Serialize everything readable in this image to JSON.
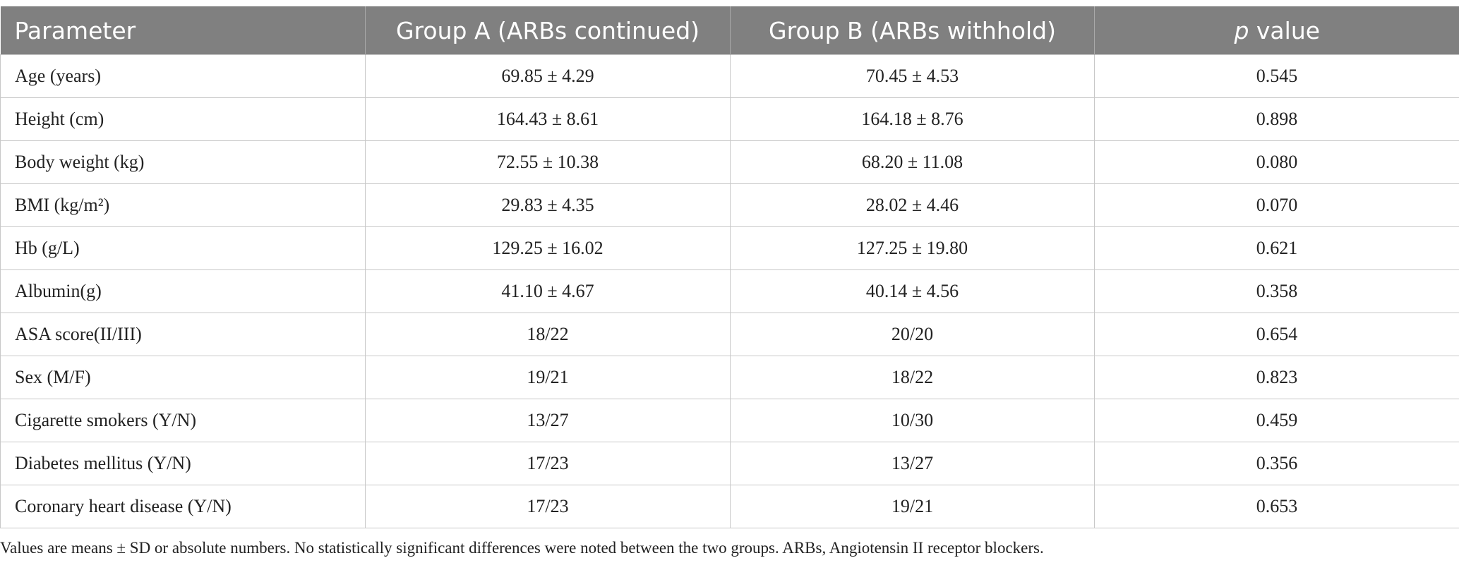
{
  "table": {
    "header": [
      "Parameter",
      "Group A (ARBs continued)",
      "Group B (ARBs withhold)",
      {
        "italic": "p",
        "rest": "value"
      }
    ],
    "rows": [
      [
        "Age (years)",
        "69.85 ± 4.29",
        "70.45 ± 4.53",
        "0.545"
      ],
      [
        "Height (cm)",
        "164.43 ± 8.61",
        "164.18 ± 8.76",
        "0.898"
      ],
      [
        "Body weight (kg)",
        "72.55 ± 10.38",
        "68.20 ± 11.08",
        "0.080"
      ],
      [
        "BMI (kg/m²)",
        "29.83 ± 4.35",
        "28.02 ± 4.46",
        "0.070"
      ],
      [
        "Hb (g/L)",
        "129.25 ± 16.02",
        "127.25 ± 19.80",
        "0.621"
      ],
      [
        "Albumin(g)",
        "41.10 ± 4.67",
        "40.14 ± 4.56",
        "0.358"
      ],
      [
        "ASA score(II/III)",
        "18/22",
        "20/20",
        "0.654"
      ],
      [
        "Sex (M/F)",
        "19/21",
        "18/22",
        "0.823"
      ],
      [
        "Cigarette smokers (Y/N)",
        "13/27",
        "10/30",
        "0.459"
      ],
      [
        "Diabetes mellitus (Y/N)",
        "17/23",
        "13/27",
        "0.356"
      ],
      [
        "Coronary heart disease (Y/N)",
        "17/23",
        "19/21",
        "0.653"
      ]
    ],
    "footnote": "Values are means ± SD or absolute numbers. No statistically significant differences were noted between the two groups. ARBs, Angiotensin II receptor blockers."
  }
}
